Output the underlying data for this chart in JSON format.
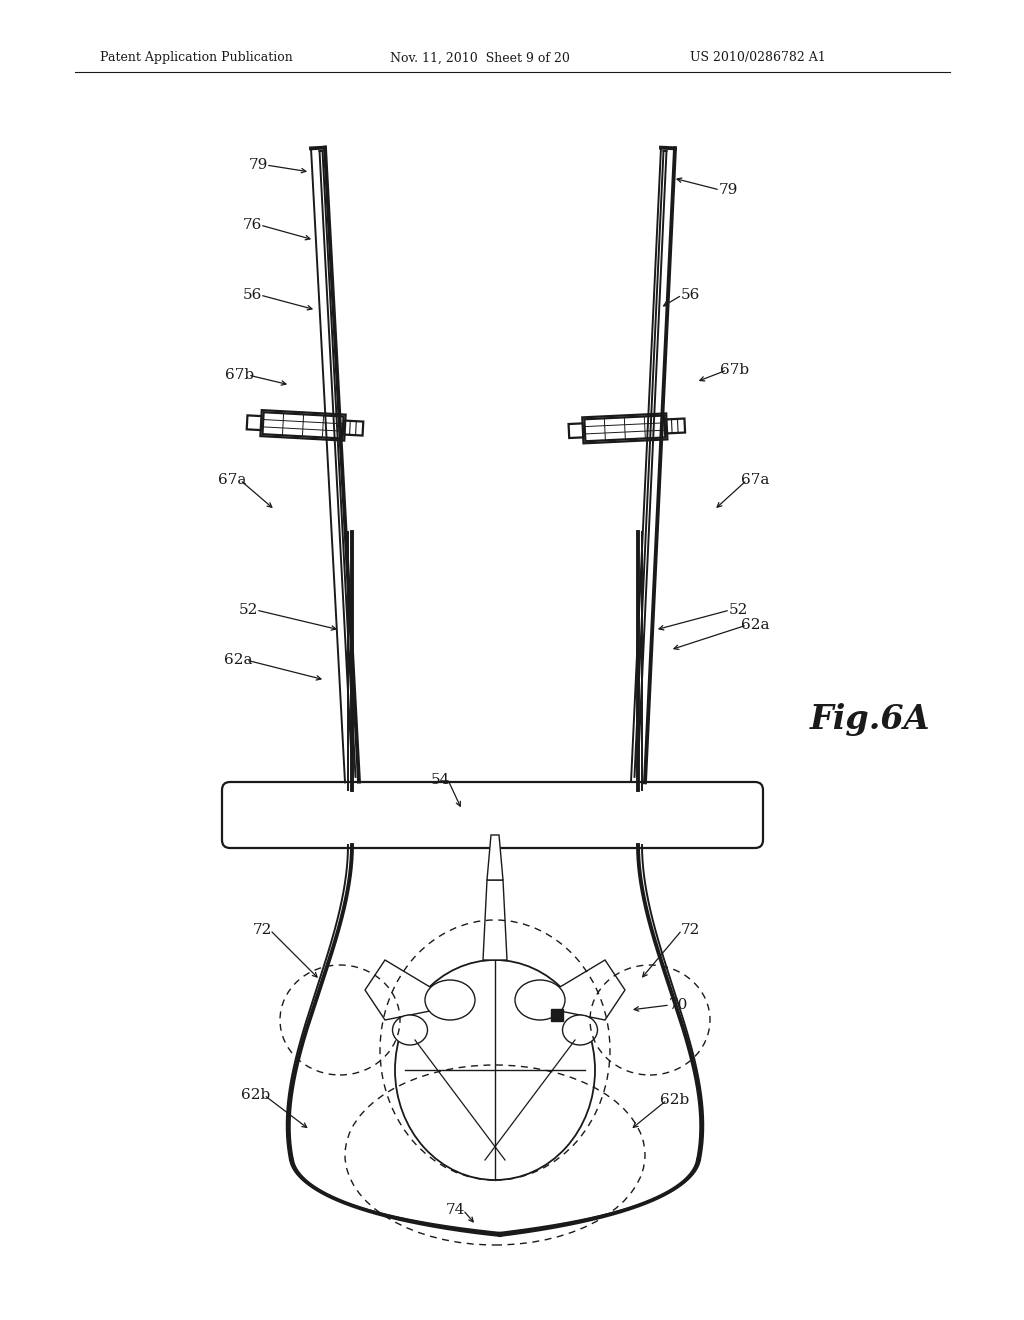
{
  "bg_color": "#ffffff",
  "line_color": "#1a1a1a",
  "title_text1": "Patent Application Publication",
  "title_text2": "Nov. 11, 2010  Sheet 9 of 20",
  "title_text3": "US 2010/0286782 A1",
  "fig_label": "Fig.6A"
}
